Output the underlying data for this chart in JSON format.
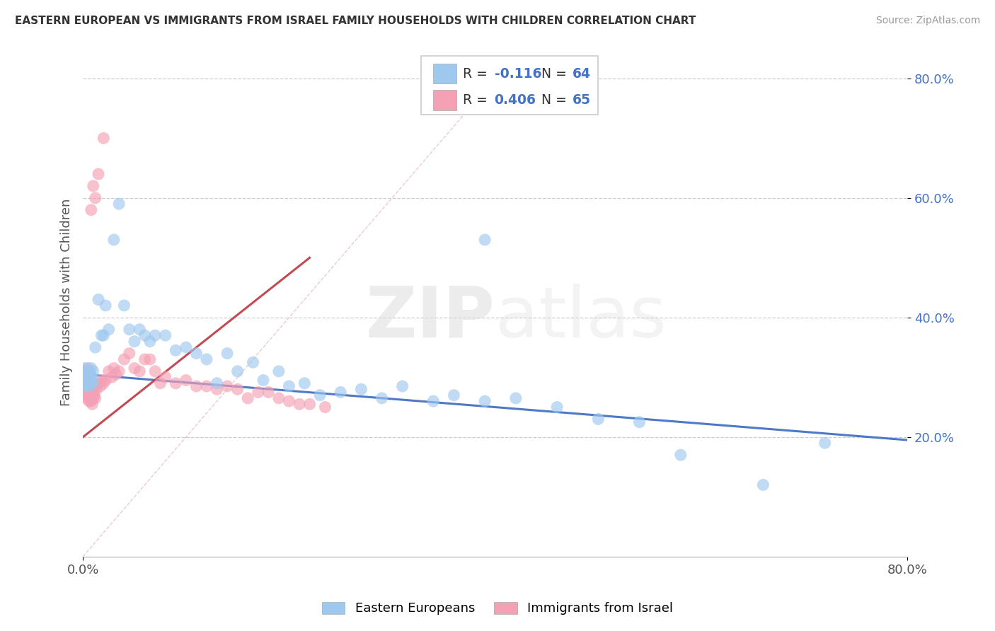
{
  "title": "EASTERN EUROPEAN VS IMMIGRANTS FROM ISRAEL FAMILY HOUSEHOLDS WITH CHILDREN CORRELATION CHART",
  "source": "Source: ZipAtlas.com",
  "ylabel": "Family Households with Children",
  "R_blue": -0.116,
  "N_blue": 64,
  "R_pink": 0.406,
  "N_pink": 65,
  "blue_color": "#9EC8EE",
  "pink_color": "#F4A0B5",
  "blue_line_color": "#4472C4",
  "pink_line_color": "#C0404A",
  "legend_label_blue": "Eastern Europeans",
  "legend_label_pink": "Immigrants from Israel",
  "blue_scatter_x": [
    0.001,
    0.001,
    0.002,
    0.002,
    0.002,
    0.003,
    0.003,
    0.003,
    0.004,
    0.004,
    0.005,
    0.005,
    0.006,
    0.006,
    0.007,
    0.008,
    0.008,
    0.009,
    0.01,
    0.01,
    0.012,
    0.015,
    0.018,
    0.02,
    0.022,
    0.025,
    0.03,
    0.035,
    0.04,
    0.045,
    0.05,
    0.055,
    0.06,
    0.065,
    0.07,
    0.08,
    0.09,
    0.1,
    0.11,
    0.12,
    0.13,
    0.14,
    0.15,
    0.165,
    0.175,
    0.19,
    0.2,
    0.215,
    0.23,
    0.25,
    0.27,
    0.29,
    0.31,
    0.34,
    0.36,
    0.39,
    0.42,
    0.46,
    0.5,
    0.54,
    0.39,
    0.58,
    0.66,
    0.72
  ],
  "blue_scatter_y": [
    0.29,
    0.31,
    0.295,
    0.315,
    0.3,
    0.305,
    0.285,
    0.3,
    0.31,
    0.295,
    0.3,
    0.29,
    0.31,
    0.285,
    0.305,
    0.295,
    0.315,
    0.3,
    0.31,
    0.29,
    0.35,
    0.43,
    0.37,
    0.37,
    0.42,
    0.38,
    0.53,
    0.59,
    0.42,
    0.38,
    0.36,
    0.38,
    0.37,
    0.36,
    0.37,
    0.37,
    0.345,
    0.35,
    0.34,
    0.33,
    0.29,
    0.34,
    0.31,
    0.325,
    0.295,
    0.31,
    0.285,
    0.29,
    0.27,
    0.275,
    0.28,
    0.265,
    0.285,
    0.26,
    0.27,
    0.26,
    0.265,
    0.25,
    0.23,
    0.225,
    0.53,
    0.17,
    0.12,
    0.19
  ],
  "pink_scatter_x": [
    0.001,
    0.001,
    0.001,
    0.002,
    0.002,
    0.002,
    0.003,
    0.003,
    0.003,
    0.004,
    0.004,
    0.005,
    0.005,
    0.005,
    0.006,
    0.006,
    0.007,
    0.007,
    0.008,
    0.008,
    0.009,
    0.01,
    0.01,
    0.011,
    0.012,
    0.013,
    0.015,
    0.017,
    0.018,
    0.02,
    0.022,
    0.025,
    0.028,
    0.03,
    0.032,
    0.035,
    0.04,
    0.045,
    0.05,
    0.055,
    0.06,
    0.065,
    0.07,
    0.075,
    0.08,
    0.09,
    0.1,
    0.11,
    0.12,
    0.13,
    0.14,
    0.15,
    0.16,
    0.17,
    0.18,
    0.19,
    0.2,
    0.21,
    0.22,
    0.235,
    0.01,
    0.012,
    0.008,
    0.015,
    0.02
  ],
  "pink_scatter_y": [
    0.28,
    0.295,
    0.31,
    0.27,
    0.29,
    0.305,
    0.265,
    0.285,
    0.3,
    0.27,
    0.29,
    0.275,
    0.295,
    0.315,
    0.26,
    0.28,
    0.27,
    0.29,
    0.26,
    0.275,
    0.255,
    0.265,
    0.28,
    0.27,
    0.265,
    0.28,
    0.29,
    0.285,
    0.295,
    0.29,
    0.295,
    0.31,
    0.3,
    0.315,
    0.305,
    0.31,
    0.33,
    0.34,
    0.315,
    0.31,
    0.33,
    0.33,
    0.31,
    0.29,
    0.3,
    0.29,
    0.295,
    0.285,
    0.285,
    0.28,
    0.285,
    0.28,
    0.265,
    0.275,
    0.275,
    0.265,
    0.26,
    0.255,
    0.255,
    0.25,
    0.62,
    0.6,
    0.58,
    0.64,
    0.7
  ],
  "watermark_zip": "ZIP",
  "watermark_atlas": "atlas"
}
